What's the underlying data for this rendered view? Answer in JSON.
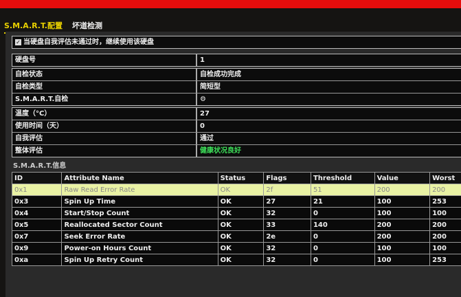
{
  "tabs": [
    {
      "label": "S.M.A.R.T.配置",
      "active": true
    },
    {
      "label": "坏道检测",
      "active": false
    }
  ],
  "option": {
    "label": "当硬盘自我评估未通过时，继续使用该硬盘",
    "checked": true
  },
  "disk": {
    "label": "硬盘号",
    "value": "1"
  },
  "selftest": [
    {
      "label": "自检状态",
      "value": "自检成功完成"
    },
    {
      "label": "自检类型",
      "value": "简短型"
    },
    {
      "label": "S.M.A.R.T.自检",
      "value": "⚙"
    }
  ],
  "info": [
    {
      "label": "温度（°C）",
      "value": "27"
    },
    {
      "label": "使用时间（天）",
      "value": "0"
    },
    {
      "label": "自我评估",
      "value": "通过"
    },
    {
      "label": "整体评估",
      "value": "健康状况良好"
    }
  ],
  "colors": {
    "accent": "#e8d000",
    "healthy": "#3ee05a",
    "topbar": "#e50c0c",
    "selected_row": "#e9f2a4"
  },
  "smart": {
    "title": "S.M.A.R.T.信息",
    "columns": [
      "ID",
      "Attribute Name",
      "Status",
      "Flags",
      "Threshold",
      "Value",
      "Worst"
    ],
    "rows": [
      [
        "0x1",
        "Raw Read Error Rate",
        "OK",
        "2f",
        "51",
        "200",
        "200"
      ],
      [
        "0x3",
        "Spin Up Time",
        "OK",
        "27",
        "21",
        "100",
        "253"
      ],
      [
        "0x4",
        "Start/Stop Count",
        "OK",
        "32",
        "0",
        "100",
        "100"
      ],
      [
        "0x5",
        "Reallocated Sector Count",
        "OK",
        "33",
        "140",
        "200",
        "200"
      ],
      [
        "0x7",
        "Seek Error Rate",
        "OK",
        "2e",
        "0",
        "200",
        "200"
      ],
      [
        "0x9",
        "Power-on Hours Count",
        "OK",
        "32",
        "0",
        "100",
        "100"
      ],
      [
        "0xa",
        "Spin Up Retry Count",
        "OK",
        "32",
        "0",
        "100",
        "253"
      ]
    ]
  }
}
